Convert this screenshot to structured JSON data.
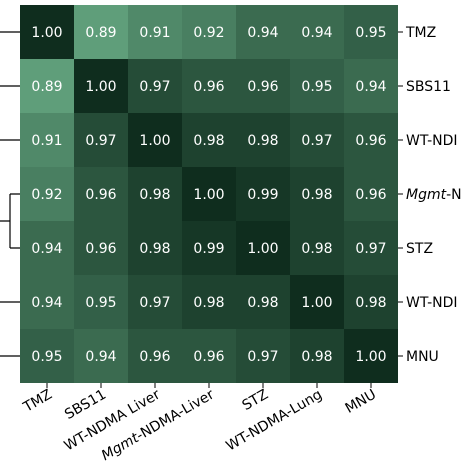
{
  "chart_data": {
    "type": "heatmap",
    "row_labels": [
      {
        "text": "TMZ",
        "italic": ""
      },
      {
        "text": "SBS11",
        "italic": ""
      },
      {
        "text": "WT-NDI",
        "italic": ""
      },
      {
        "text": "-N",
        "italic": "Mgmt"
      },
      {
        "text": "STZ",
        "italic": ""
      },
      {
        "text": "WT-NDI",
        "italic": ""
      },
      {
        "text": "MNU",
        "italic": ""
      }
    ],
    "col_labels": [
      {
        "text": "TMZ",
        "italic": ""
      },
      {
        "text": "SBS11",
        "italic": ""
      },
      {
        "text": "WT-NDMA Liver",
        "italic": ""
      },
      {
        "text": "-NDMA-Liver",
        "italic": "Mgmt"
      },
      {
        "text": "STZ",
        "italic": ""
      },
      {
        "text": "WT-NDMA-Lung",
        "italic": ""
      },
      {
        "text": "MNU",
        "italic": ""
      }
    ],
    "values": [
      [
        1.0,
        0.89,
        0.91,
        0.92,
        0.94,
        0.94,
        0.95
      ],
      [
        0.89,
        1.0,
        0.97,
        0.96,
        0.96,
        0.95,
        0.94
      ],
      [
        0.91,
        0.97,
        1.0,
        0.98,
        0.98,
        0.97,
        0.96
      ],
      [
        0.92,
        0.96,
        0.98,
        1.0,
        0.99,
        0.98,
        0.96
      ],
      [
        0.94,
        0.96,
        0.98,
        0.99,
        1.0,
        0.98,
        0.97
      ],
      [
        0.94,
        0.95,
        0.97,
        0.98,
        0.98,
        1.0,
        0.98
      ],
      [
        0.95,
        0.94,
        0.96,
        0.96,
        0.97,
        0.98,
        1.0
      ]
    ],
    "value_labels": [
      [
        "1.00",
        "0.89",
        "0.91",
        "0.92",
        "0.94",
        "0.94",
        "0.95"
      ],
      [
        "0.89",
        "1.00",
        "0.97",
        "0.96",
        "0.96",
        "0.95",
        "0.94"
      ],
      [
        "0.91",
        "0.97",
        "1.00",
        "0.98",
        "0.98",
        "0.97",
        "0.96"
      ],
      [
        "0.92",
        "0.96",
        "0.98",
        "1.00",
        "0.99",
        "0.98",
        "0.96"
      ],
      [
        "0.94",
        "0.96",
        "0.98",
        "0.99",
        "1.00",
        "0.98",
        "0.97"
      ],
      [
        "0.94",
        "0.95",
        "0.97",
        "0.98",
        "0.98",
        "1.00",
        "0.98"
      ],
      [
        "0.95",
        "0.94",
        "0.96",
        "0.96",
        "0.97",
        "0.98",
        "1.00"
      ]
    ],
    "color_scale": {
      "min_value": 0.89,
      "max_value": 1.0,
      "min_color": "#5f9e7a",
      "max_color": "#0f2d1e"
    },
    "dendrogram": "left",
    "title": "",
    "xlabel": "",
    "ylabel": ""
  }
}
